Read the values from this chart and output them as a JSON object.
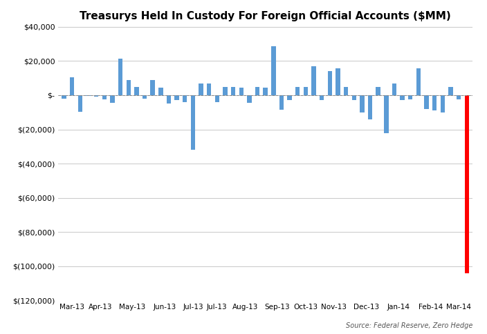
{
  "title": "Treasurys Held In Custody For Foreign Official Accounts ($MM)",
  "source_text": "Source: Federal Reserve, Zero Hedge",
  "bar_color_default": "#5B9BD5",
  "bar_color_last": "#FF0000",
  "ylim": [
    -120000,
    40000
  ],
  "ytick_step": 20000,
  "background_color": "#FFFFFF",
  "grid_color": "#C8C8C8",
  "month_labels": [
    "Mar-13",
    "Apr-13",
    "May-13",
    "Jun-13",
    "Jul-13",
    "Jul-13",
    "Aug-13",
    "Sep-13",
    "Oct-13",
    "Nov-13",
    "Dec-13",
    "Jan-14",
    "Feb-14",
    "Mar-14"
  ],
  "month_sizes": [
    3,
    4,
    4,
    4,
    3,
    3,
    4,
    4,
    3,
    4,
    4,
    4,
    4,
    3
  ],
  "bar_values": [
    -2000,
    10500,
    -9500,
    -500,
    -1000,
    -2500,
    -4500,
    21500,
    9000,
    5000,
    -2000,
    9000,
    4500,
    -5000,
    -3000,
    -4000,
    -32000,
    7000,
    7000,
    -4000,
    5000,
    5000,
    4500,
    -4500,
    5000,
    4500,
    28500,
    -8500,
    -3000,
    5000,
    5000,
    17000,
    -3000,
    14000,
    15500,
    5000,
    -3000,
    -10000,
    -14000,
    5000,
    -22000,
    7000,
    -3000,
    -2500,
    15500,
    -8000,
    -9000,
    -10000,
    5000,
    -2500,
    -104000
  ]
}
